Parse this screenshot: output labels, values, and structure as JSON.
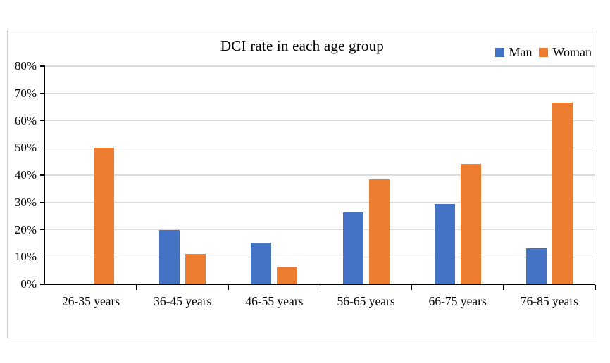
{
  "chart_data": {
    "type": "bar",
    "title": "DCI rate in each age group",
    "categories": [
      "26-35 years",
      "36-45 years",
      "46-55 years",
      "56-65 years",
      "66-75 years",
      "76-85 years"
    ],
    "series": [
      {
        "name": "Man",
        "color": "#4472C4",
        "values": [
          0,
          20,
          15.2,
          26.3,
          29.5,
          13.1
        ]
      },
      {
        "name": "Woman",
        "color": "#ED7D31",
        "values": [
          50,
          11.1,
          6.5,
          38.5,
          44.2,
          66.7
        ]
      }
    ],
    "ylabel": "",
    "xlabel": "",
    "ylim": [
      0,
      80
    ],
    "ytick_step": 10,
    "ytick_labels": [
      "0%",
      "10%",
      "20%",
      "30%",
      "40%",
      "50%",
      "60%",
      "70%",
      "80%"
    ],
    "grid": true,
    "legend_position": "top-right",
    "colors": {
      "gridline": "#dcdcdc",
      "axis": "#000000",
      "frame_border": "#d0cece",
      "background": "#ffffff",
      "text": "#000000"
    }
  }
}
